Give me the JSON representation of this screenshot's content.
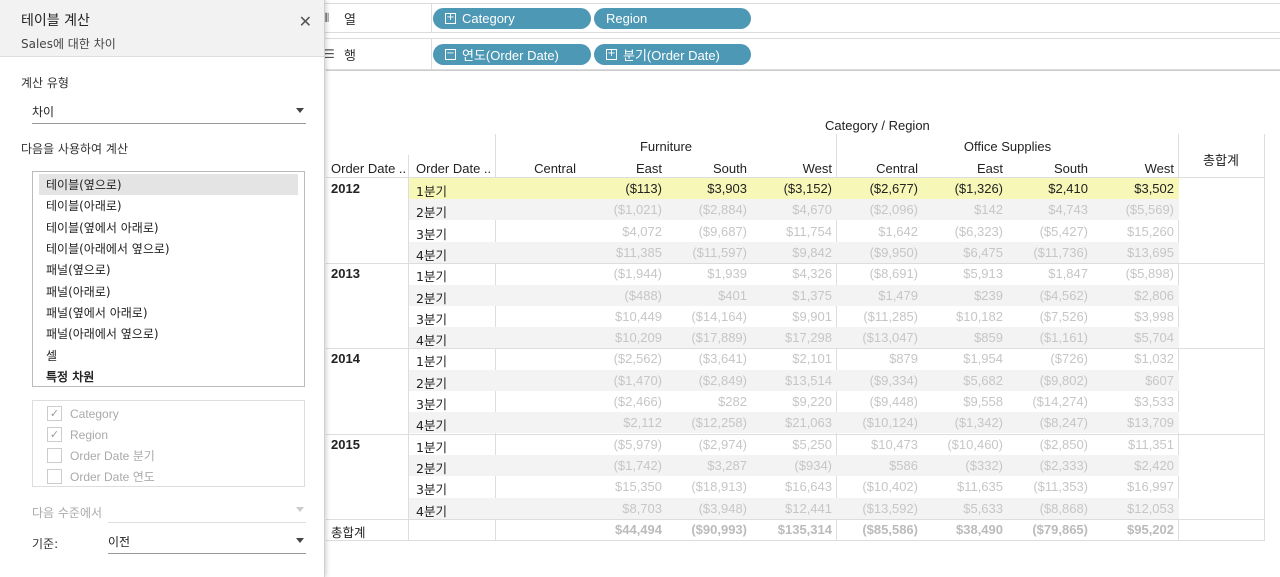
{
  "shelves": {
    "columns": {
      "label": "열",
      "pills": [
        "Category",
        "Region"
      ]
    },
    "rows": {
      "label": "행",
      "pills": [
        "연도(Order Date)",
        "분기(Order Date)"
      ]
    }
  },
  "panel": {
    "title": "테이블 계산",
    "subtitle": "Sales에 대한 차이",
    "calc_type_label": "계산 유형",
    "calc_type_value": "차이",
    "compute_using_label": "다음을 사용하여 계산",
    "compute_using_options": [
      "테이블(옆으로)",
      "테이블(아래로)",
      "테이블(옆에서 아래로)",
      "테이블(아래에서 옆으로)",
      "패널(옆으로)",
      "패널(아래로)",
      "패널(옆에서 아래로)",
      "패널(아래에서 옆으로)",
      "셀",
      "특정 차원"
    ],
    "selected_option": "테이블(옆으로)",
    "dimensions": [
      {
        "label": "Category",
        "checked": true
      },
      {
        "label": "Region",
        "checked": true
      },
      {
        "label": "Order Date 분기",
        "checked": false
      },
      {
        "label": "Order Date 연도",
        "checked": false
      }
    ],
    "at_level_label": "다음 수준에서",
    "at_level_value": "",
    "relative_to_label": "기준:",
    "relative_to_value": "이전"
  },
  "table": {
    "title": "Category / Region",
    "row_headers": [
      "Order Date ..",
      "Order Date .."
    ],
    "categories": [
      "Furniture",
      "Office Supplies"
    ],
    "regions": [
      "Central",
      "East",
      "South",
      "West"
    ],
    "grand_total_label": "총합계",
    "highlight_color": "#f7f7b8",
    "years": [
      {
        "year": "2012",
        "quarters": [
          {
            "q": "1분기",
            "values": [
              "",
              "($113)",
              "$3,903",
              "($3,152)",
              "($2,677)",
              "($1,326)",
              "$2,410",
              "$3,502"
            ]
          },
          {
            "q": "2분기",
            "values": [
              "",
              "($1,021)",
              "($2,884)",
              "$4,670",
              "($2,096)",
              "$142",
              "$4,743",
              "($5,569)"
            ]
          },
          {
            "q": "3분기",
            "values": [
              "",
              "$4,072",
              "($9,687)",
              "$11,754",
              "$1,642",
              "($6,323)",
              "($5,427)",
              "$15,260"
            ]
          },
          {
            "q": "4분기",
            "values": [
              "",
              "$11,385",
              "($11,597)",
              "$9,842",
              "($9,950)",
              "$6,475",
              "($11,736)",
              "$13,695"
            ]
          }
        ]
      },
      {
        "year": "2013",
        "quarters": [
          {
            "q": "1분기",
            "values": [
              "",
              "($1,944)",
              "$1,939",
              "$4,326",
              "($8,691)",
              "$5,913",
              "$1,847",
              "($5,898)"
            ]
          },
          {
            "q": "2분기",
            "values": [
              "",
              "($488)",
              "$401",
              "$1,375",
              "$1,479",
              "$239",
              "($4,562)",
              "$2,806"
            ]
          },
          {
            "q": "3분기",
            "values": [
              "",
              "$10,449",
              "($14,164)",
              "$9,901",
              "($11,285)",
              "$10,182",
              "($7,526)",
              "$3,998"
            ]
          },
          {
            "q": "4분기",
            "values": [
              "",
              "$10,209",
              "($17,889)",
              "$17,298",
              "($13,047)",
              "$859",
              "($1,161)",
              "$5,704"
            ]
          }
        ]
      },
      {
        "year": "2014",
        "quarters": [
          {
            "q": "1분기",
            "values": [
              "",
              "($2,562)",
              "($3,641)",
              "$2,101",
              "$879",
              "$1,954",
              "($726)",
              "$1,032"
            ]
          },
          {
            "q": "2분기",
            "values": [
              "",
              "($1,470)",
              "($2,849)",
              "$13,514",
              "($9,334)",
              "$5,682",
              "($9,802)",
              "$607"
            ]
          },
          {
            "q": "3분기",
            "values": [
              "",
              "($2,466)",
              "$282",
              "$9,220",
              "($9,448)",
              "$9,558",
              "($14,274)",
              "$3,533"
            ]
          },
          {
            "q": "4분기",
            "values": [
              "",
              "$2,112",
              "($12,258)",
              "$21,063",
              "($10,124)",
              "($1,342)",
              "($8,247)",
              "$13,709"
            ]
          }
        ]
      },
      {
        "year": "2015",
        "quarters": [
          {
            "q": "1분기",
            "values": [
              "",
              "($5,979)",
              "($2,974)",
              "$5,250",
              "$10,473",
              "($10,460)",
              "($2,850)",
              "$11,351"
            ]
          },
          {
            "q": "2분기",
            "values": [
              "",
              "($1,742)",
              "$3,287",
              "($934)",
              "$586",
              "($332)",
              "($2,333)",
              "$2,420"
            ]
          },
          {
            "q": "3분기",
            "values": [
              "",
              "$15,350",
              "($18,913)",
              "$16,643",
              "($10,402)",
              "$11,635",
              "($11,353)",
              "$16,997"
            ]
          },
          {
            "q": "4분기",
            "values": [
              "",
              "$8,703",
              "($3,948)",
              "$12,441",
              "($13,592)",
              "$5,633",
              "($8,868)",
              "$12,053"
            ]
          }
        ]
      }
    ],
    "totals": [
      "",
      "$44,494",
      "($90,993)",
      "$135,314",
      "($85,586)",
      "$38,490",
      "($79,865)",
      "$95,202"
    ]
  }
}
